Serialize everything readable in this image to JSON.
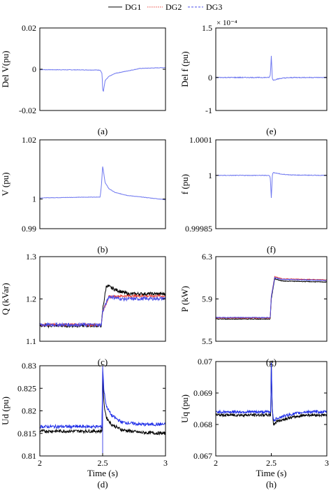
{
  "legend": {
    "placement": "top-center",
    "items": [
      {
        "label": "DG1",
        "color": "#000000",
        "dash": "solid"
      },
      {
        "label": "DG2",
        "color": "#e8413a",
        "dash": "dotted"
      },
      {
        "label": "DG3",
        "color": "#4a4de8",
        "dash": "dashed"
      }
    ]
  },
  "chart_data": [
    {
      "id": "a",
      "panel_label": "(a)",
      "type": "line",
      "ylabel": "Del V(pu)",
      "xlabel": "",
      "xlim": [
        2,
        3
      ],
      "ylim": [
        -0.02,
        0.02
      ],
      "yticks": [
        "-0.02",
        "0",
        "0.02"
      ],
      "yticks_values": [
        -0.02,
        0,
        0.02
      ],
      "xticks": [],
      "exponent": "",
      "grid": false,
      "series": [
        {
          "name": "DG3",
          "color": "#6f78f0",
          "noise": 0.00012,
          "x": [
            2.0,
            2.3,
            2.48,
            2.495,
            2.5,
            2.505,
            2.52,
            2.55,
            2.6,
            2.7,
            2.8,
            3.0
          ],
          "y": [
            -0.0002,
            -0.0003,
            -0.0004,
            -0.002,
            -0.0095,
            -0.011,
            -0.0055,
            -0.0035,
            -0.002,
            -0.0008,
            0.0004,
            0.0008
          ]
        }
      ]
    },
    {
      "id": "b",
      "panel_label": "(b)",
      "type": "line",
      "ylabel": "V (pu)",
      "xlabel": "",
      "xlim": [
        2,
        3
      ],
      "ylim": [
        0.99,
        1.02
      ],
      "yticks": [
        "0.99",
        "1",
        "1.02"
      ],
      "yticks_values": [
        0.99,
        1.0,
        1.02
      ],
      "xticks": [],
      "exponent": "",
      "grid": false,
      "series": [
        {
          "name": "DG3",
          "color": "#6f78f0",
          "noise": 7e-05,
          "x": [
            2.0,
            2.3,
            2.48,
            2.49,
            2.5,
            2.505,
            2.52,
            2.55,
            2.6,
            2.7,
            3.0
          ],
          "y": [
            1.0004,
            1.0006,
            1.0007,
            1.0045,
            1.011,
            1.0098,
            1.0055,
            1.0035,
            1.0022,
            1.0012,
            0.9998
          ]
        }
      ]
    },
    {
      "id": "c",
      "panel_label": "(c)",
      "type": "line",
      "ylabel": "Q (kVar)",
      "xlabel": "",
      "xlim": [
        2,
        3
      ],
      "ylim": [
        1.1,
        1.3
      ],
      "yticks": [
        "1.1",
        "1.2",
        "1.3"
      ],
      "yticks_values": [
        1.1,
        1.2,
        1.3
      ],
      "xticks": [],
      "exponent": "",
      "grid": false,
      "series": [
        {
          "name": "DG1",
          "color": "#000000",
          "noise": 0.004,
          "x": [
            2.0,
            2.49,
            2.5,
            2.53,
            2.6,
            2.7,
            3.0
          ],
          "y": [
            1.137,
            1.137,
            1.175,
            1.232,
            1.222,
            1.212,
            1.212
          ]
        },
        {
          "name": "DG2",
          "color": "#e8413a",
          "noise": 0.003,
          "x": [
            2.0,
            2.49,
            2.5,
            2.55,
            2.65,
            3.0
          ],
          "y": [
            1.139,
            1.139,
            1.17,
            1.205,
            1.207,
            1.207
          ]
        },
        {
          "name": "DG3",
          "color": "#4a4de8",
          "noise": 0.004,
          "x": [
            2.0,
            2.49,
            2.5,
            2.55,
            2.65,
            3.0
          ],
          "y": [
            1.139,
            1.139,
            1.17,
            1.206,
            1.2,
            1.201
          ]
        }
      ]
    },
    {
      "id": "d",
      "panel_label": "(d)",
      "type": "line",
      "ylabel": "Ud (pu)",
      "xlabel": "Time (s)",
      "xlim": [
        2,
        3
      ],
      "ylim": [
        0.81,
        0.83
      ],
      "yticks": [
        "0.81",
        "0.815",
        "0.82",
        "0.825",
        "0.83"
      ],
      "yticks_values": [
        0.81,
        0.815,
        0.82,
        0.825,
        0.83
      ],
      "xticks": [
        "2",
        "2.5",
        "3"
      ],
      "xticks_values": [
        2,
        2.5,
        3
      ],
      "exponent": "",
      "grid": false,
      "series": [
        {
          "name": "DG1",
          "color": "#000000",
          "noise": 0.00035,
          "x": [
            2.0,
            2.495,
            2.5,
            2.51,
            2.53,
            2.57,
            2.65,
            2.8,
            3.0
          ],
          "y": [
            0.8155,
            0.8155,
            0.829,
            0.8215,
            0.8185,
            0.817,
            0.8158,
            0.8152,
            0.815
          ]
        },
        {
          "name": "DG3",
          "color": "#1f2ee8",
          "noise": 0.00035,
          "x": [
            2.0,
            2.495,
            2.5,
            2.51,
            2.53,
            2.57,
            2.65,
            2.8,
            3.0
          ],
          "y": [
            0.8165,
            0.8165,
            0.83,
            0.8245,
            0.821,
            0.819,
            0.8175,
            0.817,
            0.817
          ]
        }
      ],
      "vline": {
        "x": 2.5,
        "color": "#4a4de8"
      }
    },
    {
      "id": "e",
      "panel_label": "(e)",
      "type": "line",
      "ylabel": "Del f (pu)",
      "xlabel": "",
      "xlim": [
        2,
        3
      ],
      "ylim": [
        -1,
        1.5
      ],
      "yticks": [
        "-1",
        "0",
        "1.5"
      ],
      "yticks_values": [
        -1,
        0,
        1.5
      ],
      "xticks": [],
      "exponent": "× 10⁻⁴",
      "grid": false,
      "series": [
        {
          "name": "DG3",
          "color": "#6f78f0",
          "noise": 0.012,
          "x": [
            2.0,
            2.48,
            2.49,
            2.495,
            2.5,
            2.505,
            2.51,
            2.52,
            2.55,
            2.6,
            2.7,
            3.0
          ],
          "y": [
            0.0,
            0.0,
            0.05,
            0.3,
            0.65,
            0.3,
            -0.05,
            -0.08,
            -0.05,
            -0.02,
            0.0,
            0.0
          ]
        }
      ]
    },
    {
      "id": "f",
      "panel_label": "(f)",
      "type": "line",
      "ylabel": "f (pu)",
      "xlabel": "",
      "xlim": [
        2,
        3
      ],
      "ylim": [
        0.99985,
        1.0001
      ],
      "yticks": [
        "0.99985",
        "1",
        "1.0001"
      ],
      "yticks_values": [
        0.99985,
        1.0,
        1.0001
      ],
      "xticks": [],
      "exponent": "",
      "grid": false,
      "series": [
        {
          "name": "DG3",
          "color": "#6f78f0",
          "noise": 8e-07,
          "x": [
            2.0,
            2.48,
            2.49,
            2.495,
            2.5,
            2.505,
            2.51,
            2.52,
            2.55,
            2.6,
            2.7,
            3.0
          ],
          "y": [
            1.0,
            1.0,
            0.999995,
            0.99997,
            0.999936,
            0.99997,
            1.000004,
            1.000008,
            1.000006,
            1.000003,
            1.000001,
            1.0
          ]
        }
      ]
    },
    {
      "id": "g",
      "panel_label": "(g)",
      "type": "line",
      "ylabel": "P (kW)",
      "xlabel": "",
      "xlim": [
        2,
        3
      ],
      "ylim": [
        5.5,
        6.3
      ],
      "yticks": [
        "5.5",
        "5.9",
        "6.3"
      ],
      "yticks_values": [
        5.5,
        5.9,
        6.3
      ],
      "xticks": [],
      "exponent": "",
      "grid": false,
      "series": [
        {
          "name": "DG1",
          "color": "#000000",
          "noise": 0.003,
          "x": [
            2.0,
            2.49,
            2.5,
            2.53,
            2.6,
            3.0
          ],
          "y": [
            5.71,
            5.71,
            5.9,
            6.09,
            6.07,
            6.06
          ]
        },
        {
          "name": "DG2",
          "color": "#e8413a",
          "noise": 0.003,
          "x": [
            2.0,
            2.49,
            2.5,
            2.53,
            2.6,
            3.0
          ],
          "y": [
            5.72,
            5.72,
            5.92,
            6.11,
            6.09,
            6.08
          ]
        },
        {
          "name": "DG3",
          "color": "#4a4de8",
          "noise": 0.003,
          "x": [
            2.0,
            2.49,
            2.5,
            2.53,
            2.6,
            3.0
          ],
          "y": [
            5.725,
            5.725,
            5.92,
            6.1,
            6.085,
            6.075
          ]
        }
      ]
    },
    {
      "id": "h",
      "panel_label": "(h)",
      "type": "line",
      "ylabel": "Uq (pu)",
      "xlabel": "Time (s)",
      "xlim": [
        2,
        3
      ],
      "ylim": [
        0.067,
        0.07
      ],
      "yticks": [
        "0.067",
        "0.068",
        "0.069",
        "0.07"
      ],
      "yticks_values": [
        0.067,
        0.068,
        0.069,
        0.07
      ],
      "xticks": [
        "2",
        "2.5",
        "3"
      ],
      "xticks_values": [
        2,
        2.5,
        3
      ],
      "exponent": "",
      "grid": false,
      "series": [
        {
          "name": "DG1",
          "color": "#000000",
          "noise": 4.5e-05,
          "x": [
            2.0,
            2.495,
            2.5,
            2.508,
            2.52,
            2.55,
            2.65,
            2.8,
            3.0
          ],
          "y": [
            0.0683,
            0.0683,
            0.07,
            0.0685,
            0.068,
            0.0681,
            0.0682,
            0.0683,
            0.0683
          ]
        },
        {
          "name": "DG3",
          "color": "#1f2ee8",
          "noise": 4.5e-05,
          "x": [
            2.0,
            2.495,
            2.5,
            2.508,
            2.52,
            2.55,
            2.65,
            2.8,
            3.0
          ],
          "y": [
            0.0684,
            0.0684,
            0.07,
            0.0686,
            0.0681,
            0.0682,
            0.0683,
            0.0684,
            0.0684
          ]
        }
      ]
    }
  ]
}
